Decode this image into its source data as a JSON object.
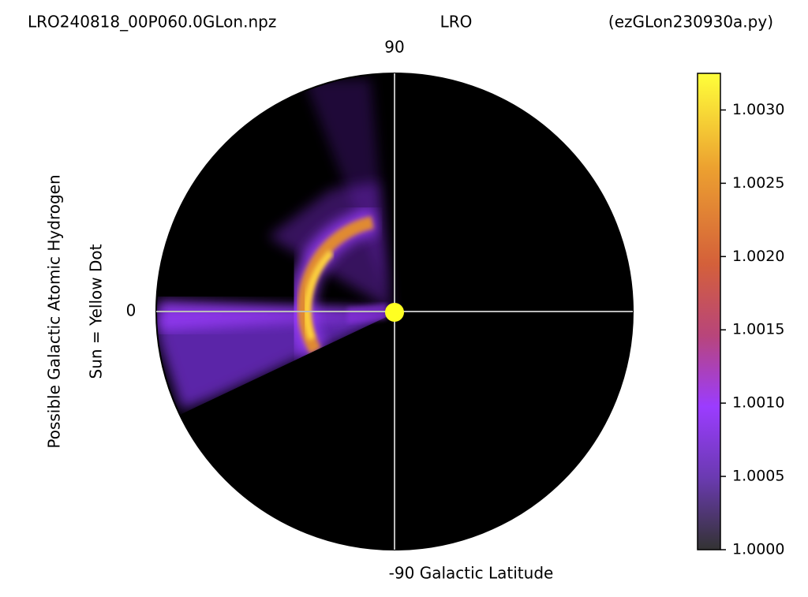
{
  "chart_data": {
    "type": "polar-heatmap",
    "titles": [
      "LRO240818_00P060.0GLon.npz",
      "LRO",
      "(ezGLon230930a.py)"
    ],
    "top_label": "90",
    "left_label": "0",
    "bottom_label": "-90 Galactic Latitude",
    "ylabels": [
      "Possible Galactic Atomic Hydrogen",
      "Sun = Yellow Dot"
    ],
    "colorbar": {
      "lim": [
        1.0,
        1.00325
      ],
      "ticks": [
        {
          "value": 1.0,
          "label": "1.0000"
        },
        {
          "value": 1.0005,
          "label": "1.0005"
        },
        {
          "value": 1.001,
          "label": "1.0010"
        },
        {
          "value": 1.0015,
          "label": "1.0015"
        },
        {
          "value": 1.002,
          "label": "1.0020"
        },
        {
          "value": 1.0025,
          "label": "1.0025"
        },
        {
          "value": 1.003,
          "label": "1.0030"
        }
      ]
    }
  }
}
